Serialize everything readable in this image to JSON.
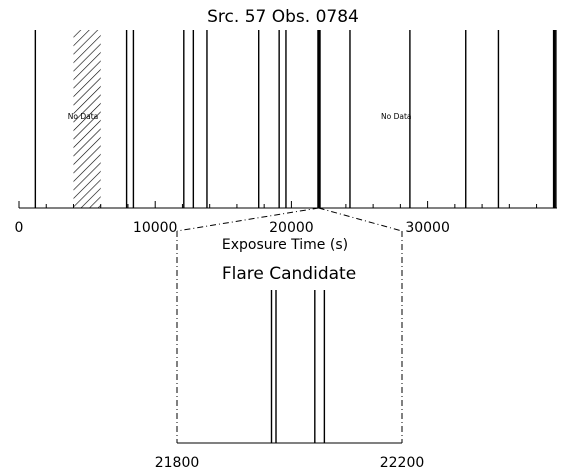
{
  "chart_data": [
    {
      "type": "event_timeline",
      "title": "Src. 57 Obs. 0784",
      "xlabel": "Exposure Time (s)",
      "xlim": [
        0,
        39500
      ],
      "xticks": [
        0,
        10000,
        20000,
        30000
      ],
      "xtick_labels": [
        "0",
        "10000",
        "20000",
        "30000"
      ],
      "events": [
        1200,
        7900,
        8400,
        12100,
        12800,
        13800,
        17600,
        19100,
        19600,
        21950,
        21980,
        22010,
        22070,
        22100,
        24300,
        28700,
        32800,
        35200,
        39250,
        39330,
        39420
      ],
      "no_data_intervals": [
        {
          "range": [
            4000,
            6000
          ],
          "label": "No Data",
          "hatched": true
        },
        {
          "range": [
            18500,
            31000
          ],
          "label": "No Data",
          "hatched": false
        }
      ]
    },
    {
      "type": "event_timeline",
      "title": "Flare Candidate",
      "xlim": [
        21800,
        22200
      ],
      "xtick_labels": [
        "21800",
        "22200"
      ],
      "events": [
        21968,
        21976,
        22045,
        22062
      ]
    }
  ]
}
